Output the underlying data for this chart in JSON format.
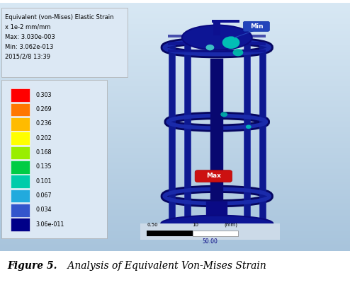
{
  "title_bold": "Figure 5.",
  "title_italic": " Analysis of Equivalent Von-Mises Strain",
  "legend_title_line1": "Equivalent (von-Mises) Elastic Strain",
  "legend_title_line2": "x 1e-2 mm/mm",
  "legend_max": "Max: 3.030e-003",
  "legend_min_val": "Min: 3.062e-013",
  "legend_date": "2015/2/8 13:39",
  "colorbar_values": [
    "0.303",
    "0.269",
    "0.236",
    "0.202",
    "0.168",
    "0.135",
    "0.101",
    "0.067",
    "0.034",
    "3.06e-011"
  ],
  "colorbar_colors": [
    "#ff0000",
    "#ff7700",
    "#ffbb00",
    "#ffff00",
    "#99ee00",
    "#00cc44",
    "#00ccaa",
    "#22aadd",
    "#3355cc",
    "#000088"
  ],
  "bg_top_color": "#d8e8f4",
  "bg_bot_color": "#b0c8e0",
  "legend_bg": "#dce8f4",
  "info_bg": "#dce8f4",
  "dark_blue": "#0a1080",
  "mid_blue": "#1a2aaa",
  "scale_bar_text": "50.00",
  "scale_left_text": "0.50",
  "scale_right_text": "10",
  "scale_unit_text": "(mm)"
}
